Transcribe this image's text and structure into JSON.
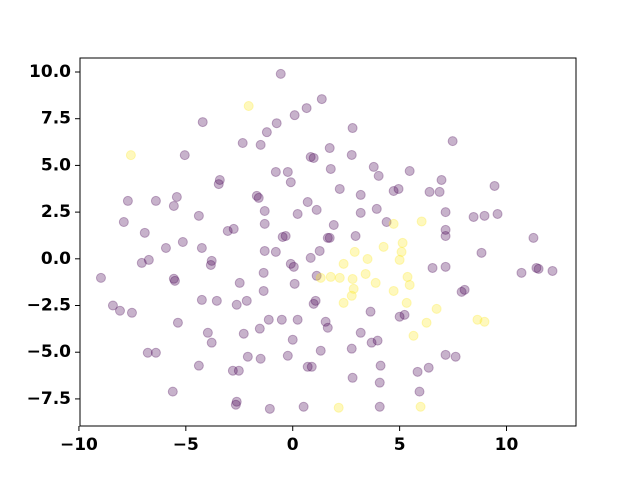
{
  "chart_data": {
    "type": "scatter",
    "xlim": [
      -9.95,
      13.25
    ],
    "ylim": [
      -8.95,
      10.75
    ],
    "xticks": [
      {
        "value": -10,
        "label": "−10"
      },
      {
        "value": -5,
        "label": "−5"
      },
      0,
      5,
      10
    ],
    "yticks": [
      {
        "value": -7.5,
        "label": "−7.5"
      },
      {
        "value": -5,
        "label": "−5.0"
      },
      {
        "value": -2.5,
        "label": "−2.5"
      },
      {
        "value": 0,
        "label": "0.0"
      },
      {
        "value": 2.5,
        "label": "2.5"
      },
      {
        "value": 5,
        "label": "5.0"
      },
      {
        "value": 7.5,
        "label": "7.5"
      },
      {
        "value": 10,
        "label": "10.0"
      }
    ],
    "grid": false,
    "series": [
      {
        "color": "#440154",
        "x": [
          -0.56,
          1.36,
          0.65,
          -0.75,
          -4.21,
          0.09,
          -1.21,
          2.8,
          7.48,
          -5.05,
          -2.34,
          -1.5,
          1.73,
          0.84,
          0.98,
          2.76,
          3.79,
          5.47,
          4.02,
          -0.79,
          -0.23,
          1.78,
          6.96,
          -3.41,
          -0.09,
          -3.46,
          4.72,
          4.95,
          9.44,
          2.2,
          -1.68,
          -1.59,
          6.87,
          6.4,
          3.18,
          -5.42,
          -7.71,
          -6.4,
          0.7,
          -5.56,
          7.15,
          1.12,
          -1.31,
          3.93,
          0.23,
          -4.39,
          8.46,
          8.97,
          9.58,
          -1.31,
          3.18,
          -7.9,
          4.39,
          1.92,
          7.15,
          -2.76,
          -3.04,
          7.15,
          2.94,
          -0.33,
          -6.92,
          -0.47,
          1.64,
          11.26,
          1.73,
          -5.14,
          -4.25,
          -5.93,
          1.26,
          -1.31,
          8.83,
          -0.79,
          0.84,
          -6.73,
          -3.79,
          -7.06,
          -0.09,
          0.05,
          6.54,
          7.15,
          -3.83,
          11.5,
          11.4,
          -1.36,
          12.15,
          10.7,
          -8.97,
          1.12,
          -5.51,
          -5.56,
          0.09,
          -2.48,
          -1.36,
          8.04,
          7.9,
          -8.41,
          1.07,
          0.98,
          -4.25,
          -3.55,
          -2.15,
          -2.62,
          -8.08,
          -7.52,
          5.23,
          5.0,
          3.64,
          -1.12,
          0.23,
          1.54,
          -0.51,
          -5.37,
          -1.54,
          1.64,
          3.18,
          -3.97,
          -2.29,
          -3.79,
          0,
          3.97,
          3.69,
          2.76,
          1.31,
          -6.78,
          -6.4,
          7.15,
          7.62,
          -2.1,
          -1.5,
          -0.23,
          -4.39,
          0.7,
          0.89,
          4.11,
          6.36,
          5.84,
          -2.8,
          -2.52,
          2.8,
          4.07,
          -5.61,
          5.93,
          -2.62,
          -2.66,
          0.51,
          -1.07,
          4.07
        ],
        "values": [
          9.9,
          8.55,
          8.07,
          7.26,
          7.32,
          7.69,
          6.78,
          7.0,
          6.3,
          5.55,
          6.2,
          6.1,
          5.93,
          5.45,
          5.4,
          5.56,
          4.92,
          4.7,
          4.44,
          4.65,
          4.65,
          4.81,
          4.22,
          4.22,
          4.1,
          4.0,
          3.63,
          3.74,
          3.9,
          3.74,
          3.37,
          3.26,
          3.58,
          3.58,
          3.42,
          3.31,
          3.1,
          3.1,
          3.04,
          2.83,
          2.5,
          2.62,
          2.56,
          2.67,
          2.4,
          2.3,
          2.24,
          2.3,
          2.4,
          1.87,
          2.46,
          1.97,
          1.97,
          1.81,
          1.55,
          1.6,
          1.49,
          1.22,
          1.22,
          1.22,
          1.39,
          1.17,
          1.12,
          1.12,
          1.12,
          0.9,
          0.58,
          0.58,
          0.42,
          0.42,
          0.32,
          0.37,
          0.05,
          -0.06,
          -0.11,
          -0.22,
          -0.27,
          -0.43,
          -0.49,
          -0.43,
          -0.33,
          -0.54,
          -0.49,
          -0.75,
          -0.65,
          -0.75,
          -1.02,
          -0.91,
          -1.18,
          -1.07,
          -1.34,
          -1.29,
          -1.72,
          -1.66,
          -1.77,
          -2.5,
          -2.25,
          -2.41,
          -2.2,
          -2.25,
          -2.25,
          -2.46,
          -2.78,
          -2.89,
          -3.0,
          -3.1,
          -2.83,
          -3.26,
          -3.26,
          -3.37,
          -3.26,
          -3.42,
          -3.74,
          -3.69,
          -3.96,
          -3.96,
          -4.01,
          -4.49,
          -4.33,
          -4.38,
          -4.49,
          -4.81,
          -4.92,
          -5.03,
          -5.03,
          -5.14,
          -5.24,
          -5.24,
          -5.35,
          -5.19,
          -5.72,
          -5.78,
          -5.78,
          -5.72,
          -5.83,
          -6.05,
          -5.99,
          -5.99,
          -6.37,
          -6.63,
          -7.11,
          -7.11,
          -7.65,
          -7.81,
          -7.92,
          -8.03,
          -7.92
        ]
      },
      {
        "color": "#fde725",
        "x": [
          -2.06,
          -7.57,
          6.03,
          4.72,
          4.25,
          5.14,
          5.09,
          2.9,
          3.5,
          2.38,
          5.0,
          5.37,
          1.31,
          1.78,
          2.2,
          2.8,
          3.41,
          3.88,
          5.47,
          2.85,
          2.76,
          4.72,
          2.38,
          5.33,
          6.73,
          6.26,
          8.64,
          8.97,
          5.65,
          2.15,
          5.98
        ],
        "values": [
          8.18,
          5.55,
          2.0,
          1.87,
          0.64,
          0.85,
          0.37,
          0.37,
          -0.01,
          -0.27,
          -0.06,
          -0.97,
          -1.02,
          -0.97,
          -1.02,
          -1.08,
          -0.81,
          -1.29,
          -1.4,
          -1.61,
          -1.98,
          -1.72,
          -2.36,
          -2.36,
          -2.68,
          -3.42,
          -3.26,
          -3.37,
          -4.12,
          -7.97,
          -7.92
        ]
      }
    ]
  }
}
